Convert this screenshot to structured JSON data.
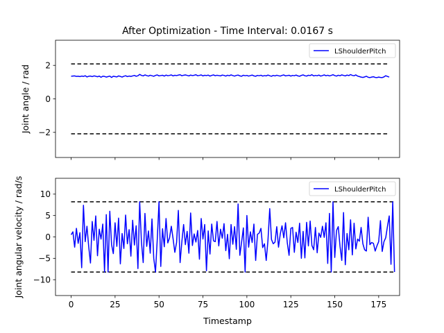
{
  "figure": {
    "title": "After Optimization - Time Interval: 0.0167 s"
  },
  "chart_data": [
    {
      "type": "line",
      "ylabel": "Joint angle / rad",
      "xlabel": "",
      "xlim": [
        -8.9,
        186.9
      ],
      "ylim": [
        -3.5,
        3.5
      ],
      "xticks": [
        0,
        25,
        50,
        75,
        100,
        125,
        150,
        175
      ],
      "yticks": [
        -2,
        0,
        2
      ],
      "ytick_labels": [
        "−2",
        "0",
        "2"
      ],
      "legend": {
        "position": "upper right",
        "entries": [
          "LShoulderPitch"
        ]
      },
      "limits": [
        2.0857,
        -2.0857
      ],
      "limit_style": {
        "color": "#000000",
        "dash": "dashed"
      },
      "series": [
        {
          "name": "LShoulderPitch",
          "color": "#0000ff",
          "x_start": 0,
          "x_step": 1,
          "values": [
            1.35,
            1.36,
            1.37,
            1.34,
            1.35,
            1.33,
            1.36,
            1.34,
            1.38,
            1.31,
            1.35,
            1.36,
            1.33,
            1.37,
            1.35,
            1.32,
            1.36,
            1.29,
            1.35,
            1.34,
            1.3,
            1.33,
            1.36,
            1.28,
            1.35,
            1.33,
            1.31,
            1.37,
            1.34,
            1.3,
            1.35,
            1.38,
            1.33,
            1.36,
            1.34,
            1.37,
            1.4,
            1.35,
            1.38,
            1.46,
            1.4,
            1.37,
            1.43,
            1.39,
            1.36,
            1.41,
            1.38,
            1.35,
            1.4,
            1.43,
            1.37,
            1.39,
            1.41,
            1.36,
            1.42,
            1.38,
            1.4,
            1.43,
            1.37,
            1.41,
            1.39,
            1.42,
            1.44,
            1.38,
            1.41,
            1.43,
            1.4,
            1.37,
            1.42,
            1.39,
            1.41,
            1.44,
            1.38,
            1.4,
            1.43,
            1.37,
            1.41,
            1.39,
            1.42,
            1.36,
            1.4,
            1.43,
            1.38,
            1.41,
            1.39,
            1.37,
            1.42,
            1.4,
            1.36,
            1.41,
            1.38,
            1.43,
            1.39,
            1.36,
            1.4,
            1.42,
            1.37,
            1.35,
            1.41,
            1.38,
            1.4,
            1.36,
            1.39,
            1.42,
            1.37,
            1.35,
            1.4,
            1.38,
            1.41,
            1.36,
            1.39,
            1.37,
            1.42,
            1.38,
            1.35,
            1.4,
            1.37,
            1.41,
            1.38,
            1.36,
            1.4,
            1.43,
            1.37,
            1.39,
            1.41,
            1.36,
            1.4,
            1.38,
            1.42,
            1.37,
            1.35,
            1.4,
            1.43,
            1.38,
            1.36,
            1.41,
            1.39,
            1.44,
            1.37,
            1.4,
            1.38,
            1.42,
            1.36,
            1.39,
            1.43,
            1.38,
            1.41,
            1.37,
            1.4,
            1.44,
            1.39,
            1.36,
            1.41,
            1.38,
            1.43,
            1.4,
            1.37,
            1.42,
            1.39,
            1.45,
            1.4,
            1.38,
            1.43,
            1.36,
            1.33,
            1.3,
            1.28,
            1.31,
            1.35,
            1.29,
            1.27,
            1.3,
            1.32,
            1.28,
            1.27,
            1.3,
            1.28,
            1.27,
            1.31,
            1.38,
            1.34,
            1.3
          ]
        }
      ]
    },
    {
      "type": "line",
      "ylabel": "Joint angular velocity / rad/s",
      "xlabel": "Timestamp",
      "xlim": [
        -8.9,
        186.9
      ],
      "ylim": [
        -13.7,
        13.7
      ],
      "xticks": [
        0,
        25,
        50,
        75,
        100,
        125,
        150,
        175
      ],
      "yticks": [
        -10,
        -5,
        0,
        5,
        10
      ],
      "ytick_labels": [
        "−10",
        "−5",
        "0",
        "5",
        "10"
      ],
      "xtick_labels": [
        "0",
        "25",
        "50",
        "75",
        "100",
        "125",
        "150",
        "175"
      ],
      "legend": {
        "position": "upper right",
        "entries": [
          "LShoulderPitch"
        ]
      },
      "limits": [
        8.2,
        -8.2
      ],
      "limit_style": {
        "color": "#000000",
        "dash": "dashed"
      },
      "series": [
        {
          "name": "LShoulderPitch",
          "color": "#0000ff",
          "x_start": 0,
          "x_step": 1,
          "values": [
            0.5,
            1.2,
            -2.4,
            2.0,
            -1.5,
            1.0,
            -7.2,
            7.4,
            -1.1,
            2.5,
            -2.3,
            -6.1,
            3.6,
            -0.8,
            4.9,
            -4.4,
            1.8,
            -0.5,
            3.0,
            -8.2,
            5.2,
            -8.2,
            6.0,
            -1.8,
            -3.9,
            3.3,
            -2.2,
            4.4,
            -6.3,
            0.8,
            -2.7,
            5.1,
            -1.6,
            1.7,
            -4.5,
            3.9,
            -1.9,
            2.6,
            -7.4,
            8.2,
            -1.2,
            -6.0,
            5.5,
            -2.2,
            1.4,
            -3.8,
            4.2,
            -5.0,
            -8.2,
            -0.6,
            8.2,
            -6.9,
            1.9,
            -2.3,
            4.3,
            -1.4,
            -0.2,
            2.5,
            -0.4,
            -3.6,
            -1.3,
            6.2,
            -6.0,
            -1.1,
            2.9,
            -1.8,
            1.3,
            -3.8,
            5.6,
            -2.0,
            0.7,
            -1.2,
            1.5,
            -5.2,
            4.3,
            -0.5,
            2.9,
            -7.9,
            1.4,
            -4.0,
            3.0,
            -0.9,
            -1.1,
            3.6,
            -2.1,
            1.8,
            -0.3,
            3.1,
            -3.2,
            0.6,
            -5.1,
            2.9,
            -1.7,
            2.4,
            -2.9,
            7.7,
            -4.3,
            -1.2,
            2.1,
            -8.2,
            5.0,
            -2.4,
            1.2,
            -1.3,
            3.0,
            -5.5,
            0.6,
            0.9,
            2.0,
            -2.5,
            -1.6,
            -5.5,
            -0.8,
            6.6,
            -0.6,
            -1.6,
            -1.2,
            2.4,
            -2.4,
            0.7,
            2.6,
            -0.2,
            3.3,
            -1.4,
            -4.3,
            2.0,
            2.2,
            -3.6,
            1.1,
            -1.3,
            3.2,
            -5.0,
            1.3,
            -4.9,
            3.4,
            -2.1,
            3.7,
            -2.0,
            -3.0,
            2.2,
            -3.7,
            0.9,
            -0.1,
            2.5,
            -0.1,
            3.3,
            -6.2,
            5.5,
            -8.2,
            8.2,
            -4.8,
            1.5,
            2.4,
            -2.2,
            -5.5,
            5.7,
            -6.5,
            0.8,
            -3.0,
            4.0,
            -4.2,
            3.2,
            -2.8,
            -0.5,
            -1.0,
            2.2,
            -1.6,
            -3.0,
            -3.3,
            4.6,
            -1.8,
            -1.3,
            -1.5,
            -3.3,
            -2.1,
            -1.1,
            3.8,
            -3.4,
            -1.1,
            -0.2,
            2.5,
            4.9,
            -6.4,
            8.2,
            -8.2
          ]
        }
      ]
    }
  ]
}
